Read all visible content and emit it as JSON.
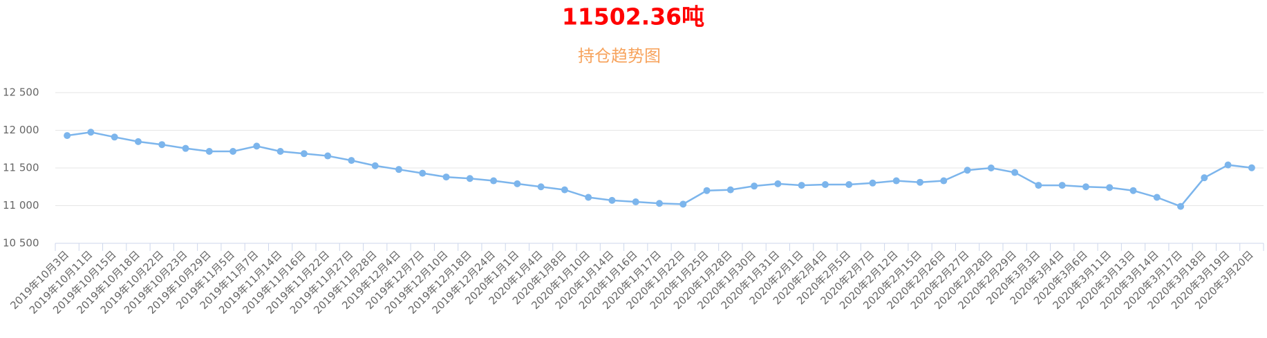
{
  "chart_data": {
    "type": "line",
    "title": "11502.36吨",
    "subtitle": "持仓趋势图",
    "categories": [
      "2019年10月3日",
      "2019年10月11日",
      "2019年10月15日",
      "2019年10月18日",
      "2019年10月22日",
      "2019年10月23日",
      "2019年10月29日",
      "2019年11月5日",
      "2019年11月7日",
      "2019年11月14日",
      "2019年11月16日",
      "2019年11月22日",
      "2019年11月27日",
      "2019年11月28日",
      "2019年12月4日",
      "2019年12月7日",
      "2019年12月10日",
      "2019年12月18日",
      "2019年12月24日",
      "2020年1月1日",
      "2020年1月4日",
      "2020年1月8日",
      "2020年1月10日",
      "2020年1月14日",
      "2020年1月16日",
      "2020年1月17日",
      "2020年1月22日",
      "2020年1月25日",
      "2020年1月28日",
      "2020年1月30日",
      "2020年1月31日",
      "2020年2月1日",
      "2020年2月4日",
      "2020年2月5日",
      "2020年2月7日",
      "2020年2月12日",
      "2020年2月15日",
      "2020年2月26日",
      "2020年2月27日",
      "2020年2月28日",
      "2020年2月29日",
      "2020年3月3日",
      "2020年3月4日",
      "2020年3月6日",
      "2020年3月11日",
      "2020年3月13日",
      "2020年3月14日",
      "2020年3月17日",
      "2020年3月18日",
      "2020年3月19日",
      "2020年3月20日"
    ],
    "values": [
      11930,
      11975,
      11910,
      11850,
      11810,
      11760,
      11720,
      11720,
      11790,
      11720,
      11690,
      11660,
      11600,
      11530,
      11480,
      11430,
      11380,
      11360,
      11330,
      11290,
      11250,
      11210,
      11110,
      11070,
      11050,
      11030,
      11020,
      11200,
      11210,
      11260,
      11290,
      11270,
      11280,
      11280,
      11300,
      11330,
      11310,
      11330,
      11470,
      11500,
      11440,
      11270,
      11270,
      11250,
      11240,
      11200,
      11110,
      10990,
      11370,
      11540,
      11502.36
    ],
    "color": "#7cb5ec",
    "ylim": [
      10500,
      12500
    ],
    "yticks": [
      {
        "value": 10500,
        "label": "10 500"
      },
      {
        "value": 11000,
        "label": "11 000"
      },
      {
        "value": 11500,
        "label": "11 500"
      },
      {
        "value": 12000,
        "label": "12 000"
      },
      {
        "value": 12500,
        "label": "12 500"
      }
    ],
    "grid": true
  }
}
